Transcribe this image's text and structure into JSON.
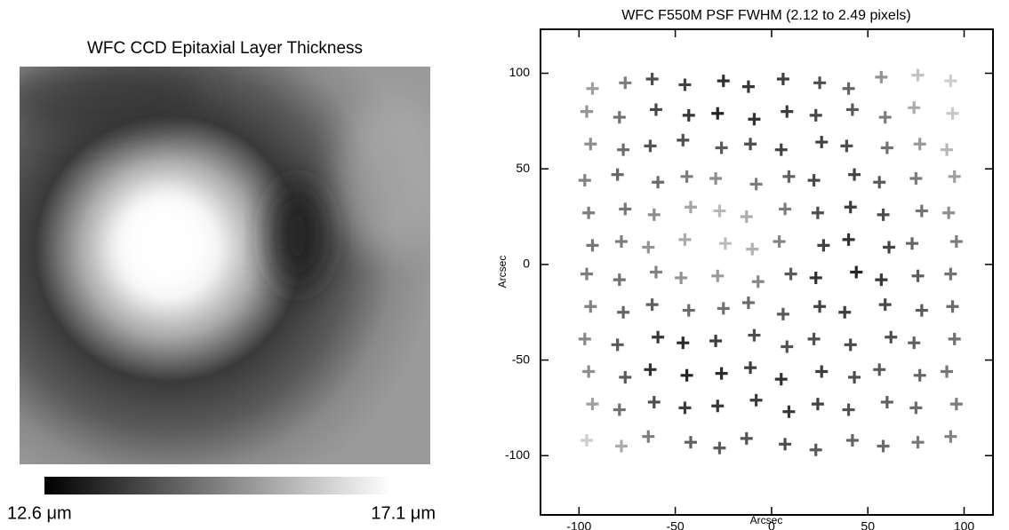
{
  "chart_data": [
    {
      "type": "image",
      "title": "WFC CCD Epitaxial Layer Thickness",
      "colorbar_labels": [
        "12.6 μm",
        "17.1 μm"
      ]
    },
    {
      "type": "scatter",
      "title": "WFC F550M PSF FWHM (2.12 to 2.49 pixels)",
      "xlabel": "Arcsec",
      "ylabel": "Arcsec",
      "marker": "+",
      "clim": [
        2.12,
        2.49
      ],
      "xlim": [
        -120,
        115
      ],
      "ylim": [
        -131,
        123
      ],
      "xticks": [
        -100,
        -50,
        0,
        50,
        100
      ],
      "yticks": [
        -100,
        -50,
        0,
        50,
        100
      ],
      "x": [
        -93,
        -76,
        -62,
        -45,
        -25,
        -12,
        6,
        25,
        40,
        57,
        76,
        93,
        -96,
        -79,
        -60,
        -43,
        -28,
        -9,
        8,
        23,
        42,
        59,
        74,
        94,
        -94,
        -77,
        -63,
        -46,
        -26,
        -11,
        5,
        26,
        39,
        60,
        77,
        91,
        -97,
        -80,
        -59,
        -44,
        -29,
        -8,
        9,
        22,
        43,
        56,
        75,
        95,
        -95,
        -76,
        -61,
        -42,
        -27,
        -13,
        7,
        24,
        41,
        58,
        78,
        92,
        -93,
        -78,
        -64,
        -45,
        -24,
        -10,
        4,
        27,
        40,
        61,
        73,
        96,
        -96,
        -79,
        -60,
        -47,
        -28,
        -7,
        10,
        23,
        44,
        57,
        76,
        93,
        -94,
        -77,
        -62,
        -43,
        -25,
        -12,
        6,
        25,
        38,
        59,
        78,
        94,
        -97,
        -80,
        -59,
        -46,
        -29,
        -9,
        8,
        22,
        41,
        62,
        74,
        95,
        -95,
        -76,
        -63,
        -44,
        -26,
        -11,
        5,
        26,
        43,
        56,
        77,
        91,
        -93,
        -79,
        -61,
        -45,
        -28,
        -8,
        9,
        24,
        40,
        60,
        75,
        96,
        -96,
        -78,
        -64,
        -42,
        -27,
        -13,
        7,
        23,
        42,
        58,
        76,
        93
      ],
      "y": [
        92,
        95,
        97,
        94,
        96,
        93,
        97,
        95,
        92,
        98,
        99,
        96,
        80,
        77,
        81,
        78,
        79,
        76,
        80,
        78,
        81,
        77,
        82,
        79,
        63,
        60,
        62,
        65,
        61,
        63,
        60,
        64,
        62,
        61,
        63,
        60,
        44,
        47,
        43,
        46,
        45,
        42,
        46,
        44,
        47,
        43,
        45,
        46,
        27,
        29,
        26,
        30,
        28,
        25,
        29,
        27,
        30,
        26,
        28,
        27,
        10,
        12,
        9,
        13,
        11,
        8,
        12,
        10,
        13,
        9,
        11,
        12,
        -5,
        -8,
        -4,
        -7,
        -6,
        -9,
        -5,
        -7,
        -4,
        -8,
        -6,
        -5,
        -22,
        -25,
        -21,
        -24,
        -23,
        -20,
        -26,
        -22,
        -25,
        -21,
        -24,
        -22,
        -39,
        -42,
        -38,
        -41,
        -40,
        -37,
        -43,
        -39,
        -42,
        -38,
        -41,
        -39,
        -56,
        -59,
        -55,
        -58,
        -57,
        -54,
        -60,
        -56,
        -59,
        -55,
        -58,
        -56,
        -73,
        -76,
        -72,
        -75,
        -74,
        -71,
        -77,
        -73,
        -76,
        -72,
        -75,
        -73,
        -92,
        -95,
        -90,
        -93,
        -96,
        -91,
        -94,
        -97,
        -92,
        -95,
        -93,
        -90
      ],
      "values": [
        2.36,
        2.3,
        2.22,
        2.2,
        2.17,
        2.18,
        2.19,
        2.22,
        2.26,
        2.34,
        2.42,
        2.44,
        2.34,
        2.28,
        2.21,
        2.18,
        2.15,
        2.17,
        2.19,
        2.21,
        2.24,
        2.3,
        2.38,
        2.43,
        2.33,
        2.27,
        2.23,
        2.22,
        2.24,
        2.22,
        2.2,
        2.2,
        2.22,
        2.28,
        2.35,
        2.4,
        2.31,
        2.26,
        2.27,
        2.3,
        2.33,
        2.3,
        2.25,
        2.21,
        2.2,
        2.24,
        2.3,
        2.36,
        2.3,
        2.29,
        2.33,
        2.37,
        2.4,
        2.38,
        2.3,
        2.22,
        2.19,
        2.22,
        2.28,
        2.33,
        2.29,
        2.3,
        2.34,
        2.38,
        2.41,
        2.39,
        2.31,
        2.2,
        2.17,
        2.2,
        2.26,
        2.3,
        2.3,
        2.28,
        2.31,
        2.34,
        2.35,
        2.32,
        2.24,
        2.17,
        2.15,
        2.18,
        2.24,
        2.28,
        2.31,
        2.26,
        2.25,
        2.27,
        2.28,
        2.27,
        2.24,
        2.2,
        2.19,
        2.21,
        2.24,
        2.27,
        2.32,
        2.24,
        2.18,
        2.16,
        2.19,
        2.22,
        2.23,
        2.22,
        2.21,
        2.22,
        2.25,
        2.28,
        2.33,
        2.24,
        2.17,
        2.15,
        2.16,
        2.19,
        2.17,
        2.19,
        2.22,
        2.24,
        2.26,
        2.29,
        2.36,
        2.28,
        2.22,
        2.19,
        2.18,
        2.19,
        2.18,
        2.2,
        2.23,
        2.25,
        2.27,
        2.3,
        2.44,
        2.38,
        2.3,
        2.25,
        2.24,
        2.23,
        2.22,
        2.24,
        2.26,
        2.27,
        2.29,
        2.31
      ]
    }
  ]
}
